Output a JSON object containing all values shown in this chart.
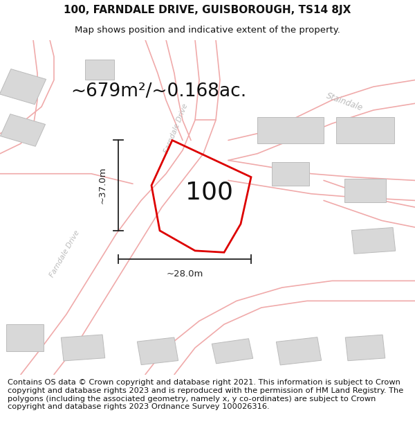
{
  "title_line1": "100, FARNDALE DRIVE, GUISBOROUGH, TS14 8JX",
  "title_line2": "Map shows position and indicative extent of the property.",
  "area_text": "~679m²/~0.168ac.",
  "property_number": "100",
  "dim_width": "~28.0m",
  "dim_height": "~37.0m",
  "footer_text": "Contains OS data © Crown copyright and database right 2021. This information is subject to Crown copyright and database rights 2023 and is reproduced with the permission of HM Land Registry. The polygons (including the associated geometry, namely x, y co-ordinates) are subject to Crown copyright and database rights 2023 Ordnance Survey 100026316.",
  "bg_color": "#ffffff",
  "map_bg": "#ffffff",
  "plot_color": "#dd0000",
  "road_color": "#f0aaaa",
  "building_color": "#d8d8d8",
  "building_edge": "#bbbbbb",
  "dim_color": "#222222",
  "road_label_color": "#bbbbbb",
  "title_fontsize": 11,
  "subtitle_fontsize": 9.5,
  "area_fontsize": 19,
  "number_fontsize": 26,
  "footer_fontsize": 8.2,
  "figsize": [
    6.0,
    6.25
  ],
  "dpi": 100
}
